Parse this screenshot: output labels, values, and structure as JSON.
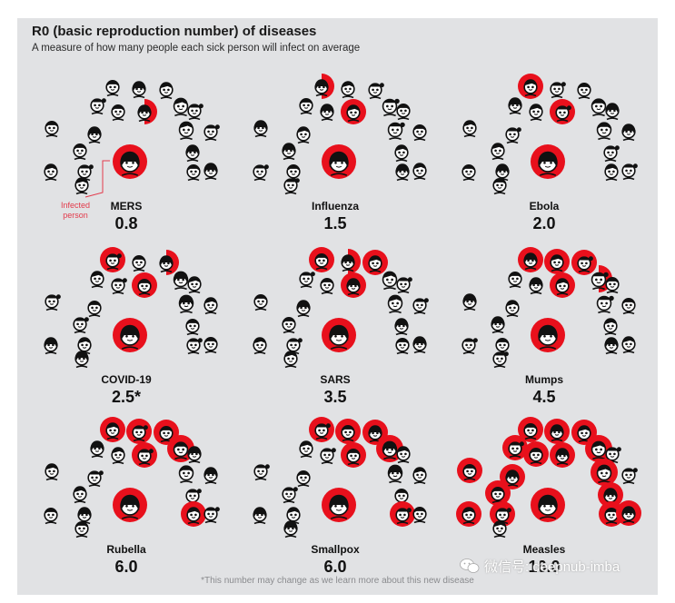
{
  "header": {
    "title": "R0 (basic reproduction number) of diseases",
    "subtitle": "A measure of how many people each sick person will infect on average"
  },
  "infected_label": [
    "Infected",
    "person"
  ],
  "footnote": "*This number may change as we learn more about this new disease",
  "watermark": "微信号: deepnub-imba",
  "colors": {
    "background": "#e1e2e4",
    "infected": "#e8101c",
    "face": "#ffffff",
    "ink": "#111111",
    "label_accent": "#e23a4b"
  },
  "icons": {
    "face": "person-face-icon",
    "watermark": "wechat-icon"
  },
  "chart_data": {
    "type": "table",
    "columns": [
      "disease",
      "r0"
    ],
    "rows": [
      {
        "disease": "MERS",
        "r0_label": "0.8",
        "r0": 0.8,
        "infected_fraction": [
          0.8
        ]
      },
      {
        "disease": "Influenza",
        "r0_label": "1.5",
        "r0": 1.5,
        "infected_fraction": [
          1,
          0.5
        ]
      },
      {
        "disease": "Ebola",
        "r0_label": "2.0",
        "r0": 2.0,
        "infected_fraction": [
          1,
          1
        ]
      },
      {
        "disease": "COVID-19",
        "r0_label": "2.5*",
        "r0": 2.5,
        "infected_fraction": [
          1,
          1,
          0.5
        ]
      },
      {
        "disease": "SARS",
        "r0_label": "3.5",
        "r0": 3.5,
        "infected_fraction": [
          1,
          1,
          1,
          0.5
        ]
      },
      {
        "disease": "Mumps",
        "r0_label": "4.5",
        "r0": 4.5,
        "infected_fraction": [
          1,
          1,
          1,
          1,
          0.5
        ]
      },
      {
        "disease": "Rubella",
        "r0_label": "6.0",
        "r0": 6.0,
        "infected_fraction": [
          1,
          1,
          1,
          1,
          1,
          1
        ]
      },
      {
        "disease": "Smallpox",
        "r0_label": "6.0",
        "r0": 6.0,
        "infected_fraction": [
          1,
          1,
          1,
          1,
          1,
          1
        ]
      },
      {
        "disease": "Measles",
        "r0_label": "16.0",
        "r0": 16.0,
        "infected_fraction": [
          1,
          1,
          1,
          1,
          1,
          1,
          1,
          1,
          1,
          1,
          1,
          1,
          1,
          1,
          1,
          1
        ]
      }
    ]
  }
}
